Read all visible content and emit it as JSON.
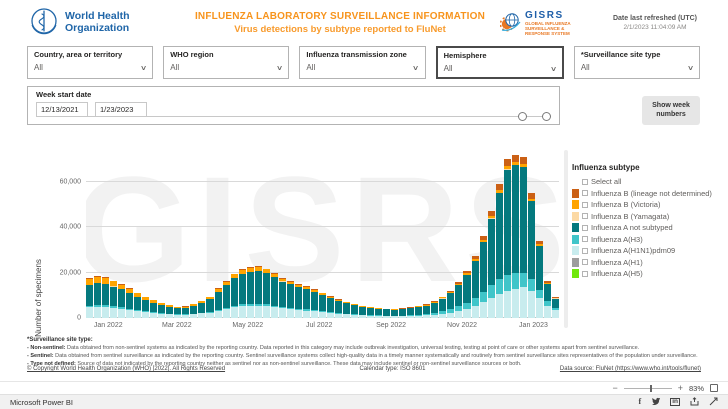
{
  "header": {
    "who_name_line1": "World Health",
    "who_name_line2": "Organization",
    "title_line1": "INFLUENZA LABORATORY SURVEILLANCE INFORMATION",
    "title_line2": "Virus detections by subtype reported to FluNet",
    "gisrs": {
      "acronym": "GISRS",
      "sub1": "GLOBAL INFLUENZA",
      "sub2": "SURVEILLANCE &",
      "sub3": "RESPONSE SYSTEM"
    },
    "refresh_label": "Date last refreshed (UTC)",
    "refresh_value": "2/1/2023 11:04:09 AM"
  },
  "filters": [
    {
      "label": "Country, area or territory",
      "value": "All",
      "highlighted": false
    },
    {
      "label": "WHO region",
      "value": "All",
      "highlighted": false
    },
    {
      "label": "Influenza transmission zone",
      "value": "All",
      "highlighted": false
    },
    {
      "label": "Hemisphere",
      "value": "All",
      "highlighted": true
    },
    {
      "label": "*Surveillance site type",
      "value": "All",
      "highlighted": false
    }
  ],
  "week_slicer": {
    "label": "Week start date",
    "start": "12/13/2021",
    "end": "1/23/2023"
  },
  "show_week_button": "Show week numbers",
  "icons": {
    "chevron_down": "∨",
    "minus": "−",
    "plus": "+"
  },
  "chart_data": {
    "type": "bar",
    "stacked": true,
    "watermark": "GISRS",
    "ylabel": "Number of specimens",
    "ylim": [
      0,
      75000
    ],
    "yticks": [
      0,
      20000,
      40000,
      60000
    ],
    "ytick_labels": [
      "0",
      "20,000",
      "40,000",
      "60,000"
    ],
    "xtick_labels": [
      "Jan 2022",
      "Mar 2022",
      "May 2022",
      "Jul 2022",
      "Sep 2022",
      "Nov 2022",
      "Jan 2023"
    ],
    "xtick_positions_pct": [
      4.7,
      19.2,
      34.2,
      49.3,
      64.5,
      79.5,
      94.6
    ],
    "x_start_week": "12/13/2021",
    "x_end_week": "1/23/2023",
    "bar_interval": "weekly",
    "n_bars": 59,
    "values_unit": "thousands of specimens",
    "series": [
      {
        "name": "Influenza A(H1N1)pdm09",
        "color": "#C8ECEE",
        "values": [
          4.8,
          5.0,
          4.9,
          4.5,
          4.1,
          3.6,
          3.1,
          2.6,
          2.2,
          1.9,
          1.6,
          1.4,
          1.4,
          1.6,
          2.0,
          2.4,
          3.2,
          3.9,
          4.7,
          5.2,
          5.4,
          5.4,
          5.2,
          4.7,
          4.2,
          3.9,
          3.5,
          3.3,
          2.9,
          2.5,
          2.2,
          1.9,
          1.6,
          1.4,
          1.2,
          1.1,
          1.0,
          0.9,
          0.9,
          0.9,
          1.0,
          1.1,
          1.2,
          1.5,
          1.9,
          2.4,
          3.1,
          4.1,
          5.4,
          7.2,
          9.0,
          10.5,
          12.0,
          13.0,
          13.5,
          12.0,
          9.0,
          5.5,
          3.5
        ]
      },
      {
        "name": "Influenza A(H3)",
        "color": "#40C5C9",
        "values": [
          0.7,
          0.7,
          0.7,
          0.7,
          0.6,
          0.5,
          0.45,
          0.4,
          0.3,
          0.3,
          0.25,
          0.2,
          0.2,
          0.25,
          0.3,
          0.4,
          0.5,
          0.65,
          0.8,
          0.85,
          0.9,
          0.9,
          0.85,
          0.8,
          0.7,
          0.65,
          0.6,
          0.55,
          0.5,
          0.45,
          0.4,
          0.33,
          0.28,
          0.25,
          0.22,
          0.2,
          0.18,
          0.17,
          0.16,
          0.17,
          0.19,
          0.2,
          0.6,
          0.8,
          1.1,
          1.5,
          2.0,
          2.6,
          3.4,
          4.4,
          5.5,
          6.5,
          7.0,
          7.0,
          6.5,
          5.0,
          3.2,
          1.8,
          1.0
        ]
      },
      {
        "name": "Influenza A not subtyped",
        "color": "#04797E",
        "values": [
          9.1,
          9.7,
          9.5,
          8.7,
          8.0,
          7.0,
          5.8,
          4.9,
          4.2,
          3.5,
          3.1,
          2.6,
          2.8,
          3.5,
          4.4,
          5.6,
          7.8,
          9.9,
          12.2,
          13.5,
          14.1,
          14.4,
          13.8,
          12.6,
          11.2,
          10.3,
          9.5,
          9.1,
          8.2,
          7.2,
          6.2,
          5.3,
          4.6,
          4.0,
          3.6,
          3.1,
          2.9,
          2.7,
          2.6,
          2.8,
          3.1,
          3.5,
          3.5,
          4.4,
          5.6,
          7.2,
          9.4,
          12.4,
          16.4,
          21.9,
          29.3,
          38.1,
          46.5,
          47.4,
          46.6,
          34.5,
          19.5,
          7.8,
          4.1
        ]
      },
      {
        "name": "Influenza B (Yamagata)",
        "color": "#FCD9A4",
        "values": [
          0.05,
          0.05,
          0.05,
          0.05,
          0.05,
          0.05,
          0.05,
          0.05,
          0.05,
          0.05,
          0.05,
          0.05,
          0.05,
          0.05,
          0.05,
          0.05,
          0.05,
          0.05,
          0.05,
          0.05,
          0.05,
          0.05,
          0.05,
          0.05,
          0.05,
          0.05,
          0.05,
          0.05,
          0.05,
          0.05,
          0.05,
          0.05,
          0.05,
          0.05,
          0.05,
          0.05,
          0.05,
          0.05,
          0.05,
          0.05,
          0.05,
          0.05,
          0.05,
          0.05,
          0.05,
          0.05,
          0.05,
          0.05,
          0.05,
          0.15,
          0.15,
          0.15,
          0.15,
          0.15,
          0.15,
          0.15,
          0.05,
          0.05,
          0.05
        ]
      },
      {
        "name": "Influenza B (Victoria)",
        "color": "#FFA400",
        "values": [
          2.6,
          2.8,
          2.6,
          2.3,
          2.0,
          1.8,
          1.5,
          1.2,
          1.0,
          0.8,
          0.7,
          0.6,
          0.6,
          0.7,
          0.8,
          0.9,
          1.2,
          1.4,
          1.6,
          1.7,
          1.7,
          1.7,
          1.6,
          1.4,
          1.2,
          1.1,
          1.0,
          0.9,
          0.8,
          0.7,
          0.6,
          0.5,
          0.4,
          0.35,
          0.3,
          0.3,
          0.25,
          0.2,
          0.2,
          0.2,
          0.25,
          0.3,
          0.35,
          0.4,
          0.45,
          0.5,
          0.55,
          0.6,
          0.7,
          0.8,
          1.0,
          1.2,
          1.4,
          1.4,
          1.3,
          1.0,
          0.7,
          0.4,
          0.25
        ]
      },
      {
        "name": "Influenza B (lineage not determined)",
        "color": "#CB6015",
        "values": [
          0.3,
          0.3,
          0.3,
          0.3,
          0.3,
          0.3,
          0.3,
          0.3,
          0.3,
          0.3,
          0.15,
          0.15,
          0.15,
          0.15,
          0.15,
          0.15,
          0.3,
          0.3,
          0.3,
          0.3,
          0.3,
          0.3,
          0.3,
          0.3,
          0.3,
          0.3,
          0.3,
          0.3,
          0.15,
          0.15,
          0.15,
          0.15,
          0.15,
          0.15,
          0.15,
          0.15,
          0.15,
          0.15,
          0.15,
          0.15,
          0.15,
          0.15,
          0.3,
          0.3,
          0.3,
          0.3,
          0.6,
          0.9,
          1.2,
          1.6,
          2.1,
          2.6,
          3.0,
          3.1,
          3.0,
          2.4,
          1.6,
          1.0,
          0.6
        ]
      }
    ]
  },
  "legend": {
    "title": "Influenza subtype",
    "items": [
      {
        "label": "Select all",
        "color": null
      },
      {
        "label": "Influenza B (lineage not determined)",
        "color": "#CB6015"
      },
      {
        "label": "Influenza B (Victoria)",
        "color": "#FFA400"
      },
      {
        "label": "Influenza B (Yamagata)",
        "color": "#FCD9A4"
      },
      {
        "label": "Influenza A not subtyped",
        "color": "#04797E"
      },
      {
        "label": "Influenza A(H3)",
        "color": "#40C5C9"
      },
      {
        "label": "Influenza A(H1N1)pdm09",
        "color": "#C8ECEE"
      },
      {
        "label": "Influenza A(H1)",
        "color": "#9D9D9D"
      },
      {
        "label": "Influenza A(H5)",
        "color": "#70E80C"
      }
    ]
  },
  "footnotes": {
    "title": "*Surveillance site type:",
    "items": [
      {
        "term": "- Non-sentinel:",
        "text": " Data obtained from non-sentinel systems as indicated by the reporting country. Data reported in this category may include outbreak investigation, universal testing, testing at point of care or other systems apart from sentinel surveillance."
      },
      {
        "term": "- Sentinel:",
        "text": " Data obtained from sentinel surveillance as indicated by the reporting country. Sentinel surveillance systems collect high-quality data in a timely manner systematically and routinely from sentinel surveillance sites representatives of the population under surveillance."
      },
      {
        "term": "- Type not defined:",
        "text": " Source of data not indicated by the reporting country neither as sentinel nor as non-sentinel surveillance. These data may include sentinel or non-sentinel surveillance sources or both."
      }
    ]
  },
  "footer_links": {
    "copyright": "© Copyright World Health Organization (WHO) [2022]. All Rights Reserved",
    "calendar": "Calendar type: ISO 8601",
    "datasource": "Data source: FluNet (https://www.who.int/tools/flunet)"
  },
  "status_bar": {
    "brand": "Microsoft Power BI",
    "zoom_level": "83%"
  }
}
